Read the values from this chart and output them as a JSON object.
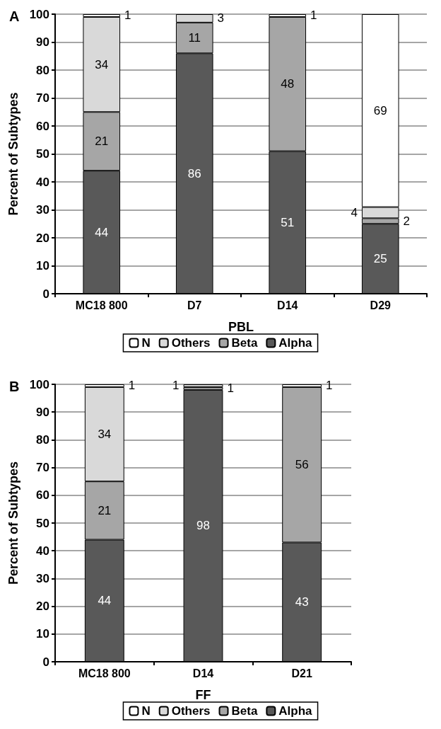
{
  "chart_data": [
    {
      "type": "bar",
      "title": "A",
      "xlabel": "PBL",
      "ylabel": "Percent of Subtypes",
      "categories": [
        "MC18 800",
        "D7",
        "D14",
        "D29"
      ],
      "stacked": true,
      "data_labels": true,
      "grid": "y",
      "legend": "bottom",
      "ylim": [
        0,
        100
      ],
      "yticks": [
        0,
        10,
        20,
        30,
        40,
        50,
        60,
        70,
        80,
        90,
        100
      ],
      "series": [
        {
          "name": "Alpha",
          "color": "#595959",
          "values": [
            44,
            86,
            51,
            25
          ]
        },
        {
          "name": "Beta",
          "color": "#a6a6a6",
          "values": [
            21,
            11,
            48,
            2
          ]
        },
        {
          "name": "Others",
          "color": "#d9d9d9",
          "values": [
            34,
            3,
            null,
            4
          ]
        },
        {
          "name": "N",
          "color": "#ffffff",
          "values": [
            1,
            null,
            1,
            69
          ]
        }
      ]
    },
    {
      "type": "bar",
      "title": "B",
      "xlabel": "FF",
      "ylabel": "Percent of Subtypes",
      "categories": [
        "MC18 800",
        "D14",
        "D21"
      ],
      "stacked": true,
      "data_labels": true,
      "grid": "y",
      "legend": "bottom",
      "ylim": [
        0,
        100
      ],
      "yticks": [
        0,
        10,
        20,
        30,
        40,
        50,
        60,
        70,
        80,
        90,
        100
      ],
      "series": [
        {
          "name": "Alpha",
          "color": "#595959",
          "values": [
            44,
            98,
            43
          ]
        },
        {
          "name": "Beta",
          "color": "#a6a6a6",
          "values": [
            21,
            1,
            56
          ]
        },
        {
          "name": "Others",
          "color": "#d9d9d9",
          "values": [
            34,
            1,
            null
          ]
        },
        {
          "name": "N",
          "color": "#ffffff",
          "values": [
            1,
            null,
            1
          ]
        }
      ]
    }
  ]
}
